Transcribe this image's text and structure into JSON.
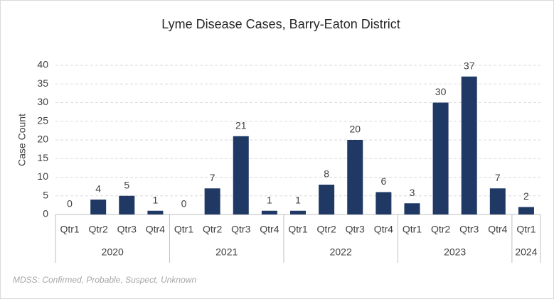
{
  "chart_data": {
    "type": "bar",
    "title": "Lyme Disease Cases, Barry-Eaton District",
    "y_label": "Case Count",
    "groups": [
      {
        "label": "2020",
        "categories": [
          "Qtr1",
          "Qtr2",
          "Qtr3",
          "Qtr4"
        ]
      },
      {
        "label": "2021",
        "categories": [
          "Qtr1",
          "Qtr2",
          "Qtr3",
          "Qtr4"
        ]
      },
      {
        "label": "2022",
        "categories": [
          "Qtr1",
          "Qtr2",
          "Qtr3",
          "Qtr4"
        ]
      },
      {
        "label": "2023",
        "categories": [
          "Qtr1",
          "Qtr2",
          "Qtr3",
          "Qtr4"
        ]
      },
      {
        "label": "2024",
        "categories": [
          "Qtr1"
        ]
      }
    ],
    "values": [
      0,
      4,
      5,
      1,
      0,
      7,
      21,
      1,
      1,
      8,
      20,
      6,
      3,
      30,
      37,
      7,
      2
    ],
    "color": "#1f3864",
    "ylim": [
      0,
      40
    ],
    "yticks": [
      0,
      5,
      10,
      15,
      20,
      25,
      30,
      35,
      40
    ],
    "grid": true,
    "note": "MDSS: Confirmed, Probable, Suspect, Unknown"
  }
}
